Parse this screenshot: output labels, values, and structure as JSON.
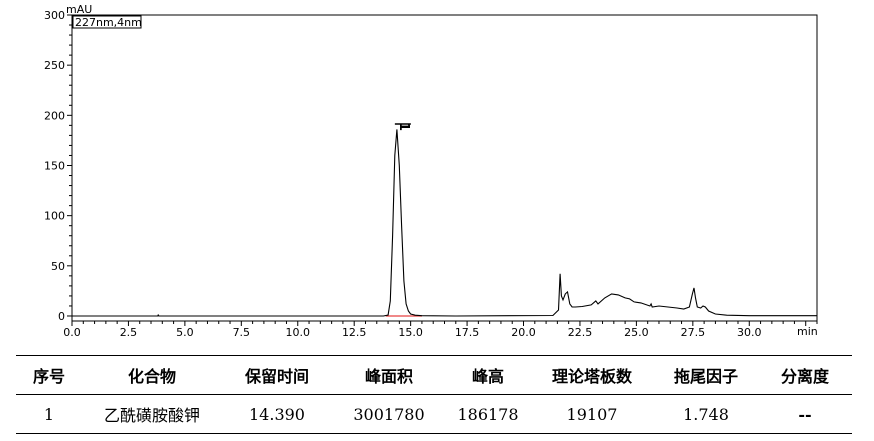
{
  "chart_data": {
    "type": "line",
    "detector_label": "227nm,4nm",
    "ylabel": "mAU",
    "xlabel": "min",
    "xlim": [
      0,
      33
    ],
    "ylim": [
      -5,
      300
    ],
    "x_ticks": [
      "0.0",
      "2.5",
      "5.0",
      "7.5",
      "10.0",
      "12.5",
      "15.0",
      "17.5",
      "20.0",
      "22.5",
      "25.0",
      "27.5",
      "30.0"
    ],
    "y_ticks": [
      "0",
      "50",
      "100",
      "150",
      "200",
      "250",
      "300"
    ],
    "x_tick_values": [
      0,
      2.5,
      5,
      7.5,
      10,
      12.5,
      15,
      17.5,
      20,
      22.5,
      25,
      27.5,
      30
    ],
    "y_tick_values": [
      0,
      50,
      100,
      150,
      200,
      250,
      300
    ],
    "peak_label": "1",
    "peak_label_x": 14.39,
    "grid": false,
    "series_color": "#000000",
    "baseline_color": "#e84040",
    "series": [
      {
        "x": [
          0,
          3.8,
          3.82,
          3.85,
          13.8,
          14.0,
          14.1,
          14.2,
          14.3,
          14.39,
          14.5,
          14.6,
          14.7,
          14.8,
          14.9,
          15.0,
          15.2,
          15.5,
          17,
          21.3,
          21.55,
          21.62,
          21.68,
          21.75,
          21.85,
          21.95,
          22.05,
          22.15,
          22.3,
          22.6,
          23.0,
          23.2,
          23.3,
          23.6,
          23.9,
          24.2,
          24.5,
          24.7,
          24.9,
          25.2,
          25.6,
          25.65,
          25.7,
          26.0,
          26.4,
          26.8,
          27.1,
          27.35,
          27.48,
          27.55,
          27.62,
          27.7,
          27.85,
          27.95,
          28.05,
          28.2,
          28.5,
          29.0,
          30.0,
          33.0
        ],
        "y": [
          0,
          0,
          1,
          0,
          0,
          1,
          15,
          80,
          160,
          186,
          150,
          90,
          35,
          12,
          5,
          2,
          0.8,
          0.3,
          0,
          0.5,
          6,
          42,
          20,
          16,
          22,
          24,
          12,
          9,
          9,
          9.5,
          11,
          15,
          12,
          18,
          22,
          21,
          18,
          17,
          14,
          13,
          10,
          12,
          9,
          10,
          9,
          8,
          7,
          9,
          22,
          28,
          18,
          9,
          8,
          10,
          9,
          5,
          2,
          0.8,
          0.3,
          0.3
        ]
      }
    ]
  },
  "table": {
    "headers": [
      "序号",
      "化合物",
      "保留时间",
      "峰面积",
      "峰高",
      "理论塔板数",
      "拖尾因子",
      "分离度"
    ],
    "rows": [
      [
        "1",
        "乙酰磺胺酸钾",
        "14.390",
        "3001780",
        "186178",
        "19107",
        "1.748",
        "--"
      ]
    ]
  }
}
